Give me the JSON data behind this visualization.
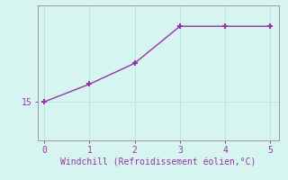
{
  "x": [
    0,
    1,
    2,
    3,
    4,
    5
  ],
  "y": [
    15.0,
    15.55,
    16.2,
    17.35,
    17.35,
    17.35
  ],
  "line_color": "#9933aa",
  "marker": "+",
  "markersize": 5,
  "markerwidth": 1.5,
  "title": "",
  "xlabel": "Windchill (Refroidissement éolien,°C)",
  "xlabel_color": "#9933aa",
  "bg_color": "#d6f5f0",
  "grid_color": "#b8e8e0",
  "spine_color": "#999999",
  "tick_color": "#9933aa",
  "ytick_labels": [
    "15"
  ],
  "ytick_values": [
    15.0
  ],
  "xtick_values": [
    0,
    1,
    2,
    3,
    4,
    5
  ],
  "xlim": [
    -0.15,
    5.2
  ],
  "ylim": [
    13.8,
    18.0
  ],
  "linewidth": 1.0
}
